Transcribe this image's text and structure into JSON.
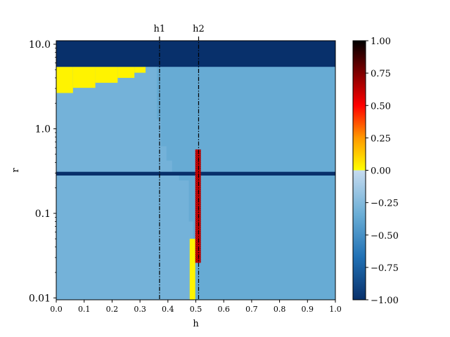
{
  "chart_data": {
    "type": "heatmap",
    "xlabel": "h",
    "ylabel": "r",
    "xlim": [
      0,
      1
    ],
    "ylim": [
      0.0095,
      11.0
    ],
    "yscale": "log",
    "x_ticks": [
      0.0,
      0.1,
      0.2,
      0.3,
      0.4,
      0.5,
      0.6,
      0.7,
      0.8,
      0.9,
      1.0
    ],
    "x_tick_labels": [
      "0.0",
      "0.1",
      "0.2",
      "0.3",
      "0.4",
      "0.5",
      "0.6",
      "0.7",
      "0.8",
      "0.9",
      "1.0"
    ],
    "y_ticks": [
      0.01,
      0.1,
      1.0,
      10.0
    ],
    "y_tick_labels": [
      "0.01",
      "0.1",
      "1.0",
      "10.0"
    ],
    "background_value": -0.3,
    "regions": [
      {
        "name": "left-region",
        "x": [
          0.0,
          0.5
        ],
        "y": [
          0.0095,
          5.4
        ],
        "value": -0.3
      },
      {
        "name": "right-region",
        "x": [
          0.36,
          1.0
        ],
        "y": [
          0.0095,
          5.4
        ],
        "value": -0.35
      },
      {
        "name": "top-band",
        "x": [
          0.0,
          1.0
        ],
        "y": [
          5.4,
          11.0
        ],
        "value": -1.0
      },
      {
        "name": "middle-band",
        "x": [
          0.0,
          1.0
        ],
        "y": [
          0.28,
          0.31
        ],
        "value": -1.0
      },
      {
        "name": "red-column",
        "x": [
          0.498,
          0.518
        ],
        "y": [
          0.026,
          0.57
        ],
        "value": 0.8
      },
      {
        "name": "yellow-column",
        "x": [
          0.478,
          0.498
        ],
        "y": [
          0.0095,
          0.05
        ],
        "value": 0.03
      }
    ],
    "yellow_staircase": {
      "value": 0.03,
      "steps": [
        {
          "x": [
            0.0,
            0.06
          ],
          "y": [
            2.65,
            5.4
          ]
        },
        {
          "x": [
            0.06,
            0.14
          ],
          "y": [
            3.05,
            5.4
          ]
        },
        {
          "x": [
            0.14,
            0.22
          ],
          "y": [
            3.5,
            5.4
          ]
        },
        {
          "x": [
            0.22,
            0.28
          ],
          "y": [
            4.0,
            5.4
          ]
        },
        {
          "x": [
            0.28,
            0.32
          ],
          "y": [
            4.6,
            5.4
          ]
        }
      ]
    },
    "vlines": [
      {
        "label": "h1",
        "x": 0.37
      },
      {
        "label": "h2",
        "x": 0.51
      }
    ],
    "colorbar": {
      "range": [
        -1.0,
        1.0
      ],
      "ticks": [
        -1.0,
        -0.75,
        -0.5,
        -0.25,
        0.0,
        0.25,
        0.5,
        0.75,
        1.0
      ],
      "tick_labels": [
        "−1.00",
        "−0.75",
        "−0.50",
        "−0.25",
        "0.00",
        "0.25",
        "0.50",
        "0.75",
        "1.00"
      ],
      "negative_colors": [
        "#08306b",
        "#2171b5",
        "#6baed6",
        "#c6dbef"
      ],
      "positive_colors": [
        "#ffff00",
        "#ff9900",
        "#ff0000",
        "#800000",
        "#000000"
      ]
    }
  }
}
